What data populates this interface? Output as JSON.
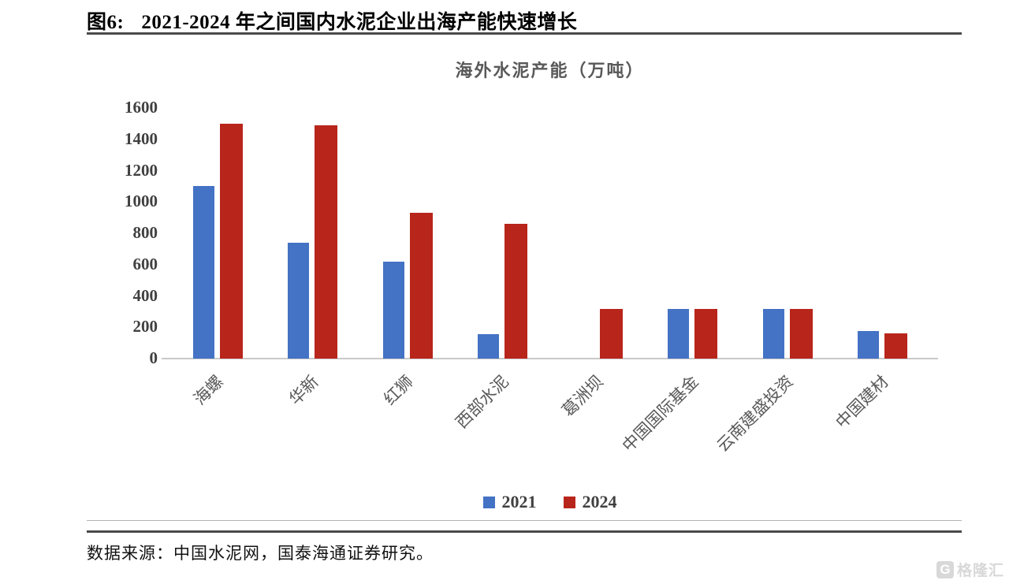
{
  "header": {
    "figure_label": "图6:",
    "title": "2021-2024 年之间国内水泥企业出海产能快速增长"
  },
  "chart_data": {
    "type": "bar",
    "title": "海外水泥产能（万吨）",
    "categories": [
      "海螺",
      "华新",
      "红狮",
      "西部水泥",
      "葛洲坝",
      "中国国际基金",
      "云南建盛投资",
      "中国建材"
    ],
    "series": [
      {
        "name": "2021",
        "color": "#4472C4",
        "values": [
          1100,
          740,
          620,
          155,
          0,
          315,
          315,
          175
        ]
      },
      {
        "name": "2024",
        "color": "#B8251B",
        "values": [
          1500,
          1490,
          930,
          860,
          315,
          315,
          315,
          160
        ]
      }
    ],
    "xlabel": "",
    "ylabel": "",
    "ylim": [
      0,
      1600
    ],
    "yticks": [
      0,
      200,
      400,
      600,
      800,
      1000,
      1200,
      1400,
      1600
    ],
    "grid": false,
    "legend_position": "bottom"
  },
  "footer": {
    "source": "数据来源：中国水泥网，国泰海通证券研究。",
    "watermark_icon": "G",
    "watermark": "格隆汇"
  }
}
